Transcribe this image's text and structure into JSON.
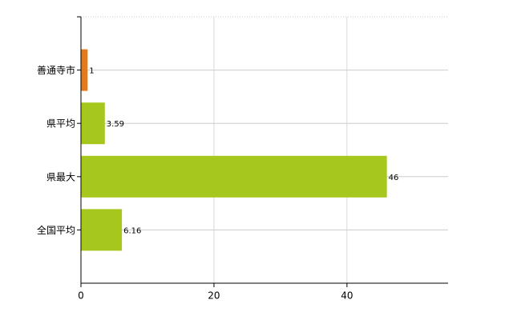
{
  "chart_data": {
    "type": "barh",
    "categories": [
      "善通寺市",
      "県平均",
      "県最大",
      "全国平均"
    ],
    "values": [
      1,
      3.59,
      46,
      6.16
    ],
    "colors": [
      "#e07b20",
      "#a6c81e",
      "#a6c81e",
      "#a6c81e"
    ],
    "xlim": [
      0,
      55.2
    ],
    "xticks": [
      0,
      20,
      40
    ],
    "grid": true
  }
}
